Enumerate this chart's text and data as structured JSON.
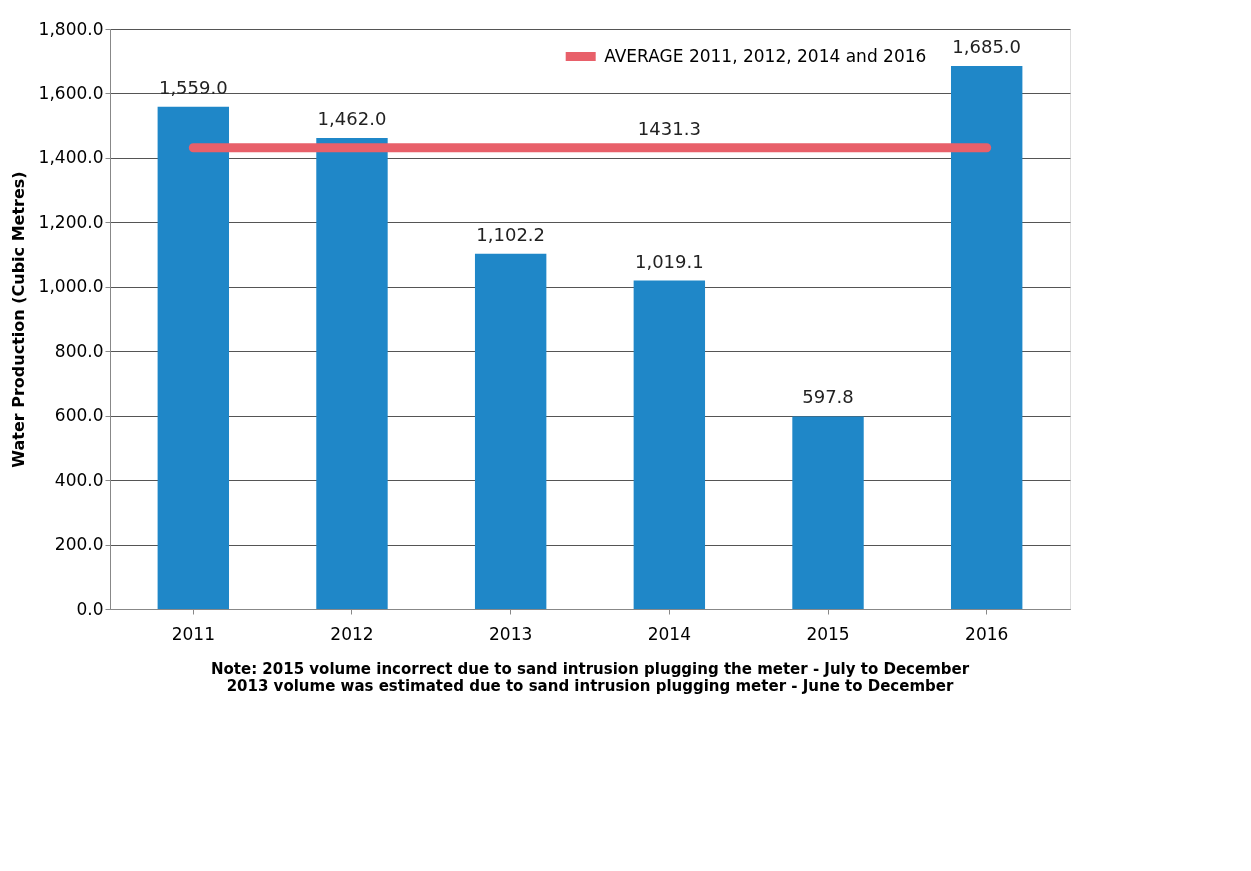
{
  "chart_data": {
    "type": "bar",
    "categories": [
      "2011",
      "2012",
      "2013",
      "2014",
      "2015",
      "2016"
    ],
    "ylabel": "Water Production (Cubic Metres)",
    "series": [
      {
        "color": "#1f87c8",
        "values": [
          1559.0,
          1462.0,
          1102.2,
          1019.1,
          597.8,
          1685.0
        ],
        "value_labels": [
          "1,559.0",
          "1,462.0",
          "1,102.2",
          "1,019.1",
          "597.8",
          "1,685.0"
        ]
      },
      {
        "type": "line",
        "name": "AVERAGE 2011, 2012, 2014 and 2016",
        "color": "#e8606a",
        "values": [
          1431.3,
          1431.3,
          1431.3,
          1431.3,
          1431.3,
          1431.3
        ],
        "value_labels": [
          null,
          null,
          null,
          "1431.3",
          null,
          null
        ]
      }
    ],
    "ylim": [
      0,
      1800
    ],
    "yticks": [
      {
        "value": 0,
        "label": "0.0"
      },
      {
        "value": 200,
        "label": "200.0"
      },
      {
        "value": 400,
        "label": "400.0"
      },
      {
        "value": 600,
        "label": "600.0"
      },
      {
        "value": 800,
        "label": "800.0"
      },
      {
        "value": 1000,
        "label": "1,000.0"
      },
      {
        "value": 1200,
        "label": "1,200.0"
      },
      {
        "value": 1400,
        "label": "1,400.0"
      },
      {
        "value": 1600,
        "label": "1,600.0"
      },
      {
        "value": 1800,
        "label": "1,800.0"
      }
    ],
    "grid": "y",
    "legend": "top right",
    "annotations": [
      "Note: 2015 volume incorrect due to sand intrusion plugging the meter - July to December",
      "2013 volume was estimated due to sand intrusion plugging meter - June to December"
    ]
  }
}
